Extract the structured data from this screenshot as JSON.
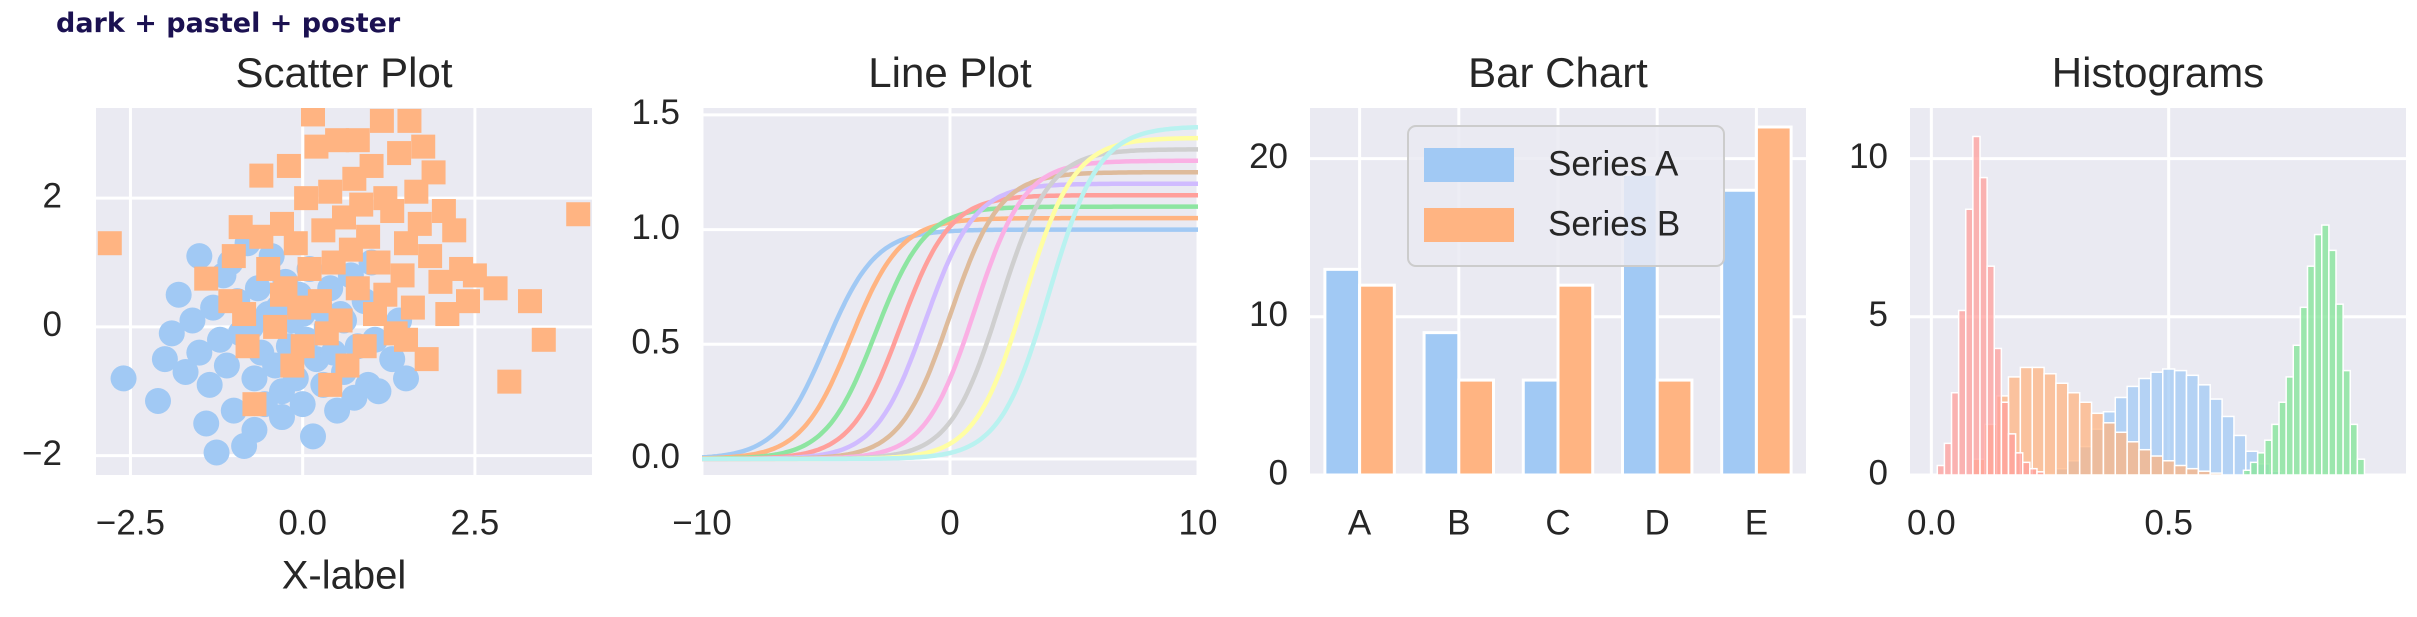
{
  "suptitle": "dark + pastel + poster",
  "charts": [
    {
      "type": "scatter",
      "title": "Scatter Plot",
      "xlabel": "X-label",
      "ylabel": "",
      "xlim": [
        -3.0,
        4.2
      ],
      "ylim": [
        -2.3,
        3.4
      ],
      "xticks": [
        -2.5,
        0.0,
        2.5
      ],
      "xtick_labels": [
        "−2.5",
        "0.0",
        "2.5"
      ],
      "yticks": [
        -2,
        0,
        2
      ],
      "ytick_labels": [
        "−2",
        "0",
        "2"
      ],
      "grid": true,
      "series": [
        {
          "color": "#a1c9f4",
          "marker": "circle",
          "points": [
            [
              -2.6,
              -0.8
            ],
            [
              -2.1,
              -1.15
            ],
            [
              -2.0,
              -0.5
            ],
            [
              -1.9,
              -0.1
            ],
            [
              -1.8,
              0.5
            ],
            [
              -1.7,
              -0.7
            ],
            [
              -1.6,
              0.1
            ],
            [
              -1.5,
              -0.4
            ],
            [
              -1.4,
              -1.5
            ],
            [
              -1.35,
              -0.9
            ],
            [
              -1.3,
              0.3
            ],
            [
              -1.2,
              -0.2
            ],
            [
              -1.15,
              0.8
            ],
            [
              -1.1,
              -0.6
            ],
            [
              -1.05,
              1.0
            ],
            [
              -1.0,
              -1.3
            ],
            [
              -0.95,
              0.4
            ],
            [
              -0.9,
              -0.1
            ],
            [
              -0.85,
              -1.85
            ],
            [
              -0.8,
              1.3
            ],
            [
              -0.75,
              0.0
            ],
            [
              -0.7,
              -0.8
            ],
            [
              -0.65,
              0.6
            ],
            [
              -0.6,
              -0.4
            ],
            [
              -0.55,
              -1.2
            ],
            [
              -0.5,
              0.2
            ],
            [
              -0.45,
              1.1
            ],
            [
              -0.4,
              -0.6
            ],
            [
              -0.35,
              0.3
            ],
            [
              -0.3,
              -1.0
            ],
            [
              -0.25,
              0.7
            ],
            [
              -0.2,
              -0.3
            ],
            [
              -0.15,
              0.1
            ],
            [
              -0.1,
              -0.8
            ],
            [
              -0.05,
              0.5
            ],
            [
              0.0,
              -1.2
            ],
            [
              0.05,
              -0.2
            ],
            [
              0.1,
              0.9
            ],
            [
              0.15,
              -1.7
            ],
            [
              0.2,
              -0.5
            ],
            [
              0.25,
              0.3
            ],
            [
              0.3,
              -0.9
            ],
            [
              0.35,
              0.0
            ],
            [
              0.4,
              0.6
            ],
            [
              0.45,
              -0.4
            ],
            [
              0.5,
              -1.3
            ],
            [
              0.55,
              0.2
            ],
            [
              0.6,
              -0.7
            ],
            [
              0.7,
              0.8
            ],
            [
              0.75,
              -1.1
            ],
            [
              0.8,
              -0.3
            ],
            [
              0.9,
              0.4
            ],
            [
              0.95,
              -0.9
            ],
            [
              1.0,
              1.0
            ],
            [
              1.05,
              -0.2
            ],
            [
              1.1,
              -1.0
            ],
            [
              1.3,
              -0.5
            ],
            [
              1.4,
              0.1
            ],
            [
              1.5,
              -0.8
            ],
            [
              -1.25,
              -1.95
            ],
            [
              -0.7,
              -1.6
            ],
            [
              -1.5,
              1.1
            ],
            [
              0.0,
              0.2
            ],
            [
              -0.3,
              -1.4
            ],
            [
              0.6,
              0.1
            ]
          ]
        },
        {
          "color": "#ffb482",
          "marker": "square",
          "points": [
            [
              -2.8,
              1.3
            ],
            [
              -1.4,
              0.75
            ],
            [
              -1.05,
              0.4
            ],
            [
              -1.0,
              1.1
            ],
            [
              -0.9,
              1.55
            ],
            [
              -0.85,
              0.2
            ],
            [
              -0.8,
              -0.3
            ],
            [
              -0.7,
              -1.2
            ],
            [
              -0.6,
              2.35
            ],
            [
              -0.5,
              0.9
            ],
            [
              -0.4,
              0.0
            ],
            [
              -0.3,
              1.6
            ],
            [
              -0.25,
              0.6
            ],
            [
              -0.2,
              2.5
            ],
            [
              -0.15,
              -0.6
            ],
            [
              -0.1,
              1.3
            ],
            [
              -0.05,
              0.3
            ],
            [
              0.0,
              -0.3
            ],
            [
              0.05,
              2.0
            ],
            [
              0.1,
              0.9
            ],
            [
              0.15,
              3.3
            ],
            [
              0.2,
              2.8
            ],
            [
              0.25,
              0.4
            ],
            [
              0.3,
              1.5
            ],
            [
              0.35,
              -0.1
            ],
            [
              0.4,
              2.1
            ],
            [
              0.45,
              1.0
            ],
            [
              0.5,
              2.9
            ],
            [
              0.55,
              0.1
            ],
            [
              0.6,
              1.7
            ],
            [
              0.65,
              -0.6
            ],
            [
              0.7,
              1.2
            ],
            [
              0.75,
              2.3
            ],
            [
              0.8,
              0.6
            ],
            [
              0.85,
              1.9
            ],
            [
              0.9,
              -0.3
            ],
            [
              0.95,
              1.4
            ],
            [
              1.0,
              2.5
            ],
            [
              1.05,
              0.2
            ],
            [
              1.1,
              1.0
            ],
            [
              1.15,
              3.2
            ],
            [
              1.2,
              0.5
            ],
            [
              1.3,
              1.8
            ],
            [
              1.35,
              -0.1
            ],
            [
              1.4,
              2.7
            ],
            [
              1.45,
              0.8
            ],
            [
              1.5,
              1.3
            ],
            [
              1.55,
              3.2
            ],
            [
              1.6,
              0.3
            ],
            [
              1.65,
              2.1
            ],
            [
              1.7,
              1.6
            ],
            [
              1.75,
              2.8
            ],
            [
              1.8,
              -0.5
            ],
            [
              1.85,
              1.1
            ],
            [
              1.9,
              2.4
            ],
            [
              2.0,
              0.7
            ],
            [
              2.05,
              1.8
            ],
            [
              2.1,
              0.2
            ],
            [
              2.2,
              1.5
            ],
            [
              2.3,
              0.9
            ],
            [
              2.4,
              0.4
            ],
            [
              2.5,
              0.8
            ],
            [
              2.8,
              0.6
            ],
            [
              3.0,
              -0.85
            ],
            [
              3.3,
              0.4
            ],
            [
              3.5,
              -0.2
            ],
            [
              4.0,
              1.75
            ],
            [
              1.2,
              2.0
            ],
            [
              0.4,
              -0.9
            ],
            [
              -0.6,
              1.4
            ],
            [
              0.8,
              2.9
            ],
            [
              1.5,
              -0.2
            ],
            [
              -0.3,
              0.5
            ]
          ]
        }
      ]
    },
    {
      "type": "line",
      "title": "Line Plot",
      "xlabel": "",
      "ylabel": "",
      "xlim": [
        -10,
        10
      ],
      "ylim": [
        -0.07,
        1.53
      ],
      "xticks": [
        -10,
        0,
        10
      ],
      "xtick_labels": [
        "−10",
        "0",
        "10"
      ],
      "yticks": [
        0.0,
        0.5,
        1.0,
        1.5
      ],
      "ytick_labels": [
        "0.0",
        "0.5",
        "1.0",
        "1.5"
      ],
      "grid": true,
      "curve": "amp / (1 + exp(-(x - shift)))",
      "series": [
        {
          "shift": -5,
          "amp": 1.0,
          "color": "#a1c9f4"
        },
        {
          "shift": -4,
          "amp": 1.05,
          "color": "#ffb482"
        },
        {
          "shift": -3,
          "amp": 1.1,
          "color": "#8de5a1"
        },
        {
          "shift": -2,
          "amp": 1.15,
          "color": "#ff9f9b"
        },
        {
          "shift": -1,
          "amp": 1.2,
          "color": "#d0bbff"
        },
        {
          "shift": 0,
          "amp": 1.25,
          "color": "#debb9b"
        },
        {
          "shift": 1,
          "amp": 1.3,
          "color": "#fab0e4"
        },
        {
          "shift": 2,
          "amp": 1.35,
          "color": "#cfcfcf"
        },
        {
          "shift": 3,
          "amp": 1.4,
          "color": "#fffea3"
        },
        {
          "shift": 4,
          "amp": 1.45,
          "color": "#b9f2f0"
        }
      ]
    },
    {
      "type": "bar",
      "title": "Bar Chart",
      "xlabel": "",
      "ylabel": "",
      "categories": [
        "A",
        "B",
        "C",
        "D",
        "E"
      ],
      "ylim": [
        0,
        23.2
      ],
      "yticks": [
        0,
        10,
        20
      ],
      "ytick_labels": [
        "0",
        "10",
        "20"
      ],
      "grid": true,
      "legend": "top-left",
      "series": [
        {
          "name": "Series A",
          "values": [
            13,
            9,
            6,
            19,
            18
          ],
          "color": "#a1c9f4"
        },
        {
          "name": "Series B",
          "values": [
            12,
            6,
            12,
            6,
            22
          ],
          "color": "#ffb482"
        }
      ]
    },
    {
      "type": "histogram",
      "title": "Histograms",
      "xlabel": "",
      "ylabel": "",
      "xlim": [
        -0.045,
        1.0
      ],
      "ylim": [
        0,
        11.6
      ],
      "xticks": [
        0.0,
        0.5
      ],
      "xtick_labels": [
        "0.0",
        "0.5"
      ],
      "yticks": [
        0,
        5,
        10
      ],
      "ytick_labels": [
        "0",
        "5",
        "10"
      ],
      "grid": true,
      "series": [
        {
          "color": "#a1c9f4",
          "opacity": 0.75,
          "bins": [
            [
              0.275,
              0.2
            ],
            [
              0.3,
              0.45
            ],
            [
              0.325,
              0.9
            ],
            [
              0.35,
              1.45
            ],
            [
              0.375,
              2.0
            ],
            [
              0.4,
              2.45
            ],
            [
              0.425,
              2.8
            ],
            [
              0.45,
              3.05
            ],
            [
              0.475,
              3.25
            ],
            [
              0.5,
              3.35
            ],
            [
              0.525,
              3.3
            ],
            [
              0.55,
              3.15
            ],
            [
              0.575,
              2.85
            ],
            [
              0.6,
              2.4
            ],
            [
              0.625,
              1.85
            ],
            [
              0.65,
              1.25
            ],
            [
              0.675,
              0.75
            ],
            [
              0.7,
              0.35
            ],
            [
              0.725,
              0.12
            ]
          ]
        },
        {
          "color": "#ffb482",
          "opacity": 0.75,
          "bins": [
            [
              0.1,
              0.5
            ],
            [
              0.125,
              1.6
            ],
            [
              0.15,
              2.5
            ],
            [
              0.175,
              3.1
            ],
            [
              0.2,
              3.4
            ],
            [
              0.225,
              3.4
            ],
            [
              0.25,
              3.2
            ],
            [
              0.275,
              2.9
            ],
            [
              0.3,
              2.6
            ],
            [
              0.325,
              2.3
            ],
            [
              0.35,
              1.95
            ],
            [
              0.375,
              1.65
            ],
            [
              0.4,
              1.35
            ],
            [
              0.425,
              1.05
            ],
            [
              0.45,
              0.8
            ],
            [
              0.475,
              0.6
            ],
            [
              0.5,
              0.45
            ],
            [
              0.525,
              0.3
            ],
            [
              0.55,
              0.2
            ],
            [
              0.575,
              0.12
            ],
            [
              0.6,
              0.06
            ]
          ]
        },
        {
          "color": "#ff9f9b",
          "opacity": 0.75,
          "bins": [
            [
              0.02,
              0.3
            ],
            [
              0.035,
              1.0
            ],
            [
              0.05,
              2.6
            ],
            [
              0.065,
              5.2
            ],
            [
              0.08,
              8.4
            ],
            [
              0.095,
              10.7
            ],
            [
              0.11,
              9.4
            ],
            [
              0.125,
              6.6
            ],
            [
              0.14,
              4.0
            ],
            [
              0.155,
              2.3
            ],
            [
              0.17,
              1.3
            ],
            [
              0.185,
              0.7
            ],
            [
              0.2,
              0.4
            ],
            [
              0.215,
              0.2
            ],
            [
              0.23,
              0.1
            ]
          ]
        },
        {
          "color": "#8de5a1",
          "opacity": 0.85,
          "bins": [
            [
              0.665,
              0.15
            ],
            [
              0.68,
              0.4
            ],
            [
              0.695,
              0.7
            ],
            [
              0.71,
              1.1
            ],
            [
              0.725,
              1.6
            ],
            [
              0.74,
              2.3
            ],
            [
              0.755,
              3.1
            ],
            [
              0.77,
              4.1
            ],
            [
              0.785,
              5.3
            ],
            [
              0.8,
              6.6
            ],
            [
              0.815,
              7.6
            ],
            [
              0.83,
              7.9
            ],
            [
              0.845,
              7.1
            ],
            [
              0.86,
              5.4
            ],
            [
              0.875,
              3.3
            ],
            [
              0.89,
              1.6
            ],
            [
              0.905,
              0.5
            ]
          ]
        }
      ]
    }
  ]
}
